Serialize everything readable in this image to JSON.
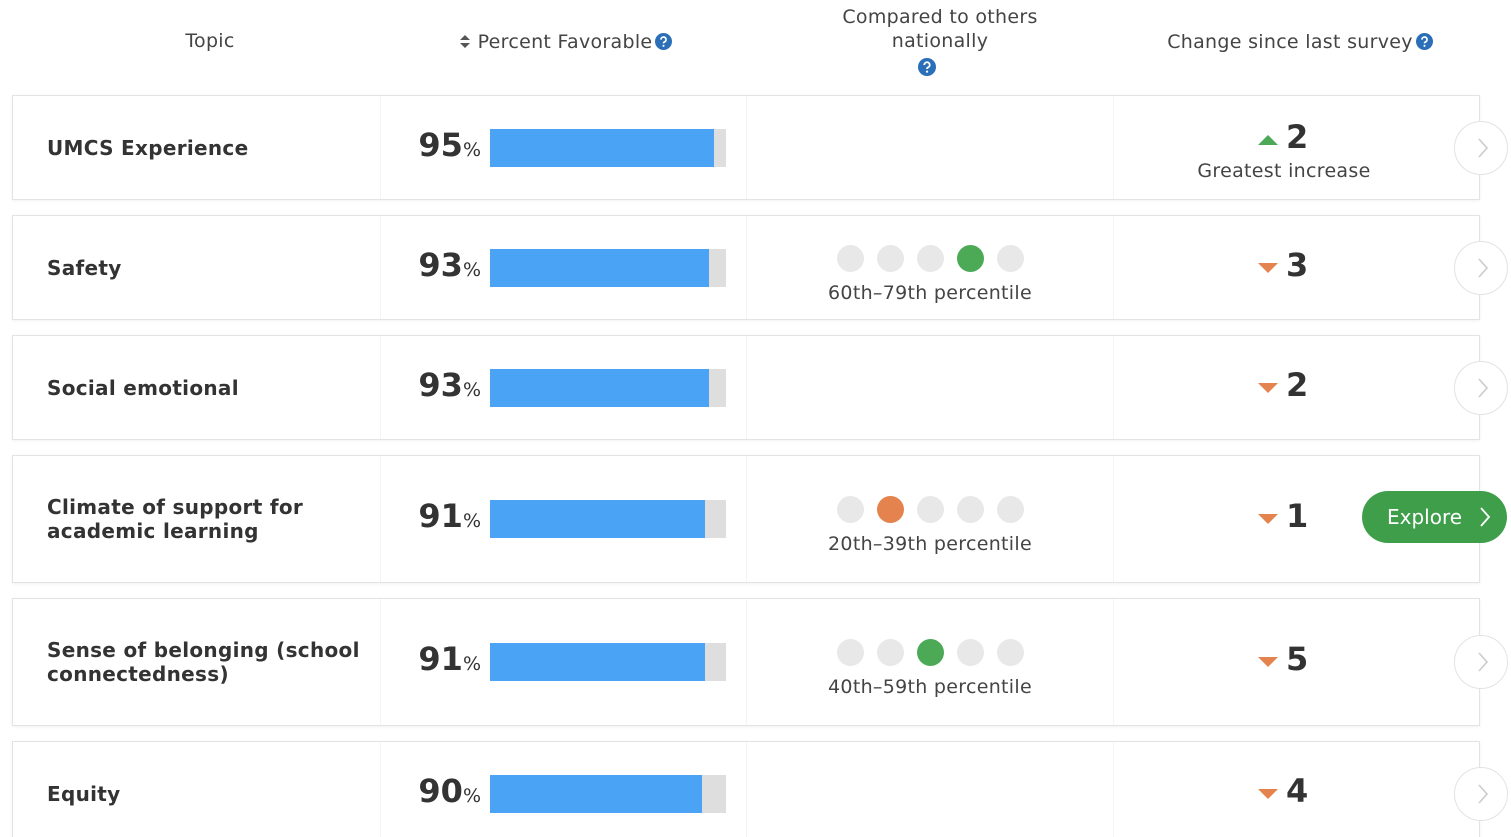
{
  "header": {
    "topic": "Topic",
    "percent_favorable": "Percent Favorable",
    "compared": "Compared to others nationally",
    "change": "Change since last survey"
  },
  "percent_sign": "%",
  "rows": [
    {
      "topic": "UMCS Experience",
      "percent": 95,
      "comparison": null,
      "change": 2,
      "direction": "up",
      "note": "Greatest increase"
    },
    {
      "topic": "Safety",
      "percent": 93,
      "comparison": {
        "level": 4,
        "color": "#4caa57",
        "label": "60th–79th percentile"
      },
      "change": 3,
      "direction": "down"
    },
    {
      "topic": "Social emotional",
      "percent": 93,
      "comparison": null,
      "change": 2,
      "direction": "down"
    },
    {
      "topic": "Climate of support for academic learning",
      "percent": 91,
      "comparison": {
        "level": 2,
        "color": "#e5834f",
        "label": "20th–39th percentile"
      },
      "change": 1,
      "direction": "down",
      "action": "Explore"
    },
    {
      "topic": "Sense of belonging (school connectedness)",
      "percent": 91,
      "comparison": {
        "level": 3,
        "color": "#4caa57",
        "label": "40th–59th percentile"
      },
      "change": 5,
      "direction": "down"
    },
    {
      "topic": "Equity",
      "percent": 90,
      "comparison": null,
      "change": 4,
      "direction": "down"
    }
  ]
}
